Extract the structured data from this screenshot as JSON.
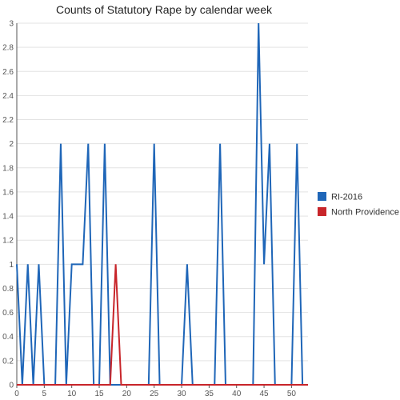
{
  "chart_data": {
    "type": "line",
    "title": "Counts of Statutory Rape by calendar week",
    "xlabel": "",
    "ylabel": "",
    "xlim": [
      0,
      53
    ],
    "ylim": [
      0,
      3
    ],
    "x_ticks": [
      0,
      5,
      10,
      15,
      20,
      25,
      30,
      35,
      40,
      45,
      50
    ],
    "y_ticks": [
      0,
      0.2,
      0.4,
      0.6,
      0.8,
      1,
      1.2,
      1.4,
      1.6,
      1.8,
      2,
      2.2,
      2.4,
      2.6,
      2.8,
      3
    ],
    "grid": "horizontal",
    "legend_position": "right",
    "series": [
      {
        "name": "RI-2016",
        "color": "#1f66b8",
        "points": [
          [
            0,
            1
          ],
          [
            1,
            0
          ],
          [
            2,
            1
          ],
          [
            3,
            0
          ],
          [
            4,
            1
          ],
          [
            5,
            0
          ],
          [
            7,
            0
          ],
          [
            8,
            2
          ],
          [
            9,
            0
          ],
          [
            10,
            1
          ],
          [
            12,
            1
          ],
          [
            13,
            2
          ],
          [
            14,
            0
          ],
          [
            15,
            0
          ],
          [
            16,
            2
          ],
          [
            17,
            0
          ],
          [
            24,
            0
          ],
          [
            25,
            2
          ],
          [
            26,
            0
          ],
          [
            30,
            0
          ],
          [
            31,
            1
          ],
          [
            32,
            0
          ],
          [
            36,
            0
          ],
          [
            37,
            2
          ],
          [
            38,
            0
          ],
          [
            43,
            0
          ],
          [
            44,
            3
          ],
          [
            45,
            1
          ],
          [
            46,
            2
          ],
          [
            47,
            0
          ],
          [
            50,
            0
          ],
          [
            51,
            2
          ],
          [
            52,
            0
          ],
          [
            53,
            0
          ]
        ]
      },
      {
        "name": "North Providence",
        "color": "#c8252a",
        "points": [
          [
            0,
            0
          ],
          [
            17,
            0
          ],
          [
            18,
            1
          ],
          [
            19,
            0
          ],
          [
            53,
            0
          ]
        ]
      }
    ]
  }
}
